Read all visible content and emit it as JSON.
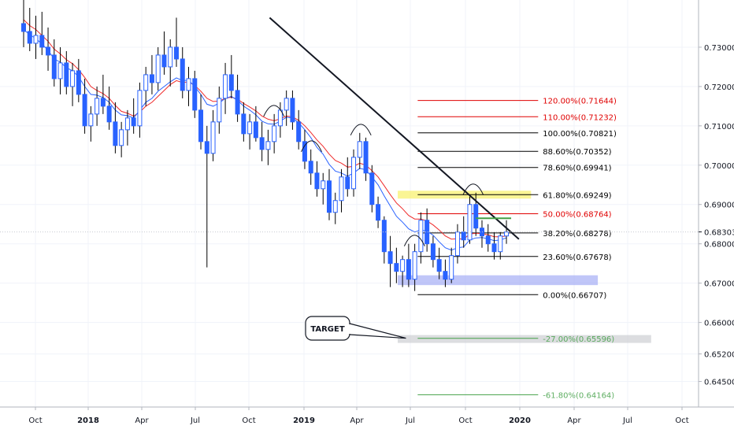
{
  "colors": {
    "background": "#ffffff",
    "grid": "#f0f3fa",
    "axis_line": "#b2b5be",
    "candle": "#2962ff",
    "ema_fast": "#ef2b2b",
    "ema_slow": "#2962ff",
    "trendline": "#131722",
    "fib_black": "#000000",
    "fib_red": "#e00000",
    "fib_green": "#43a047",
    "zone_yellow": "#f7f05a",
    "zone_blue": "#9ea7f5",
    "zone_gray": "#c9cbd0",
    "price_marker_bg": "#ffffff"
  },
  "chart_data": {
    "type": "candlestick",
    "title": "",
    "xlabel": "",
    "ylabel": "",
    "grid": true,
    "x_axis_labels": [
      "Oct",
      "2018",
      "Apr",
      "Jul",
      "Oct",
      "2019",
      "Apr",
      "Jul",
      "Oct",
      "2020",
      "Apr",
      "Jul",
      "Oct"
    ],
    "x_axis_bold": [
      "2018",
      "2019",
      "2020"
    ],
    "y_axis_ticks": [
      "0.73000",
      "0.72000",
      "0.71000",
      "0.70000",
      "0.69000",
      "0.68000",
      "0.67000",
      "0.66000",
      "0.65200",
      "0.64500"
    ],
    "y_axis_tick_values": [
      0.73,
      0.72,
      0.71,
      0.7,
      0.69,
      0.68,
      0.67,
      0.66,
      0.652,
      0.645
    ],
    "current_price": "0.68303",
    "x_range": [
      "2017-09",
      "2020-11"
    ],
    "y_range": [
      0.639,
      0.738
    ],
    "trendline": {
      "from": [
        "2018-11-05",
        0.7375
      ],
      "to": [
        "2019-12-30",
        0.6812
      ]
    },
    "fib_levels": [
      {
        "label": "120.00%(0.71644)",
        "value": 0.71644,
        "color": "red"
      },
      {
        "label": "110.00%(0.71232)",
        "value": 0.71232,
        "color": "red"
      },
      {
        "label": "100.00%(0.70821)",
        "value": 0.70821,
        "color": "black"
      },
      {
        "label": "88.60%(0.70352)",
        "value": 0.70352,
        "color": "black"
      },
      {
        "label": "78.60%(0.69941)",
        "value": 0.69941,
        "color": "black"
      },
      {
        "label": "61.80%(0.69249)",
        "value": 0.69249,
        "color": "black"
      },
      {
        "label": "50.00%(0.68764)",
        "value": 0.68764,
        "color": "red"
      },
      {
        "label": "38.20%(0.68278)",
        "value": 0.68278,
        "color": "black"
      },
      {
        "label": "23.60%(0.67678)",
        "value": 0.67678,
        "color": "black"
      },
      {
        "label": "0.00%(0.66707)",
        "value": 0.66707,
        "color": "black"
      },
      {
        "label": "-27.00%(0.65596)",
        "value": 0.65596,
        "color": "green"
      },
      {
        "label": "-61.80%(0.64164)",
        "value": 0.64164,
        "color": "green"
      }
    ],
    "fib_span": [
      "2019-07-08",
      "2019-12-16"
    ],
    "zones": [
      {
        "name": "yellow",
        "from": "2019-06-10",
        "to": "2020-01-20",
        "low": 0.6915,
        "high": 0.6935
      },
      {
        "name": "blue",
        "from": "2019-06-10",
        "to": "2020-05-11",
        "low": 0.6695,
        "high": 0.672
      },
      {
        "name": "gray",
        "from": "2019-06-10",
        "to": "2020-08-10",
        "low": 0.6553,
        "high": 0.6568
      }
    ],
    "callout": {
      "text": "TARGET",
      "points_to": [
        "2019-06-24",
        0.656
      ]
    },
    "swing_highs": [
      "2018-11-12",
      "2019-01-14",
      "2019-04-08",
      "2019-07-08",
      "2019-10-14"
    ],
    "candles": [
      {
        "o": 0.736,
        "h": 0.742,
        "l": 0.73,
        "c": 0.734
      },
      {
        "o": 0.734,
        "h": 0.74,
        "l": 0.729,
        "c": 0.731
      },
      {
        "o": 0.731,
        "h": 0.738,
        "l": 0.727,
        "c": 0.733
      },
      {
        "o": 0.733,
        "h": 0.739,
        "l": 0.728,
        "c": 0.73
      },
      {
        "o": 0.73,
        "h": 0.735,
        "l": 0.724,
        "c": 0.728
      },
      {
        "o": 0.728,
        "h": 0.732,
        "l": 0.72,
        "c": 0.722
      },
      {
        "o": 0.722,
        "h": 0.73,
        "l": 0.718,
        "c": 0.726
      },
      {
        "o": 0.726,
        "h": 0.729,
        "l": 0.718,
        "c": 0.72
      },
      {
        "o": 0.72,
        "h": 0.726,
        "l": 0.715,
        "c": 0.724
      },
      {
        "o": 0.724,
        "h": 0.727,
        "l": 0.716,
        "c": 0.718
      },
      {
        "o": 0.718,
        "h": 0.722,
        "l": 0.708,
        "c": 0.71
      },
      {
        "o": 0.71,
        "h": 0.715,
        "l": 0.706,
        "c": 0.713
      },
      {
        "o": 0.713,
        "h": 0.72,
        "l": 0.71,
        "c": 0.717
      },
      {
        "o": 0.717,
        "h": 0.723,
        "l": 0.713,
        "c": 0.715
      },
      {
        "o": 0.715,
        "h": 0.72,
        "l": 0.709,
        "c": 0.711
      },
      {
        "o": 0.711,
        "h": 0.716,
        "l": 0.703,
        "c": 0.705
      },
      {
        "o": 0.705,
        "h": 0.711,
        "l": 0.702,
        "c": 0.709
      },
      {
        "o": 0.709,
        "h": 0.714,
        "l": 0.705,
        "c": 0.712
      },
      {
        "o": 0.712,
        "h": 0.717,
        "l": 0.708,
        "c": 0.71
      },
      {
        "o": 0.71,
        "h": 0.721,
        "l": 0.707,
        "c": 0.719
      },
      {
        "o": 0.719,
        "h": 0.725,
        "l": 0.715,
        "c": 0.723
      },
      {
        "o": 0.723,
        "h": 0.728,
        "l": 0.718,
        "c": 0.721
      },
      {
        "o": 0.721,
        "h": 0.73,
        "l": 0.719,
        "c": 0.728
      },
      {
        "o": 0.728,
        "h": 0.734,
        "l": 0.723,
        "c": 0.725
      },
      {
        "o": 0.725,
        "h": 0.732,
        "l": 0.72,
        "c": 0.73
      },
      {
        "o": 0.73,
        "h": 0.7375,
        "l": 0.725,
        "c": 0.727
      },
      {
        "o": 0.727,
        "h": 0.73,
        "l": 0.717,
        "c": 0.719
      },
      {
        "o": 0.719,
        "h": 0.725,
        "l": 0.715,
        "c": 0.722
      },
      {
        "o": 0.722,
        "h": 0.724,
        "l": 0.712,
        "c": 0.714
      },
      {
        "o": 0.714,
        "h": 0.718,
        "l": 0.704,
        "c": 0.706
      },
      {
        "o": 0.706,
        "h": 0.71,
        "l": 0.674,
        "c": 0.703
      },
      {
        "o": 0.703,
        "h": 0.714,
        "l": 0.701,
        "c": 0.711
      },
      {
        "o": 0.711,
        "h": 0.72,
        "l": 0.708,
        "c": 0.717
      },
      {
        "o": 0.717,
        "h": 0.726,
        "l": 0.713,
        "c": 0.723
      },
      {
        "o": 0.723,
        "h": 0.728,
        "l": 0.717,
        "c": 0.719
      },
      {
        "o": 0.719,
        "h": 0.723,
        "l": 0.711,
        "c": 0.713
      },
      {
        "o": 0.713,
        "h": 0.716,
        "l": 0.706,
        "c": 0.708
      },
      {
        "o": 0.708,
        "h": 0.713,
        "l": 0.704,
        "c": 0.711
      },
      {
        "o": 0.711,
        "h": 0.715,
        "l": 0.706,
        "c": 0.707
      },
      {
        "o": 0.707,
        "h": 0.711,
        "l": 0.701,
        "c": 0.704
      },
      {
        "o": 0.704,
        "h": 0.709,
        "l": 0.7,
        "c": 0.706
      },
      {
        "o": 0.706,
        "h": 0.713,
        "l": 0.703,
        "c": 0.71
      },
      {
        "o": 0.71,
        "h": 0.716,
        "l": 0.707,
        "c": 0.714
      },
      {
        "o": 0.714,
        "h": 0.719,
        "l": 0.71,
        "c": 0.717
      },
      {
        "o": 0.717,
        "h": 0.719,
        "l": 0.709,
        "c": 0.711
      },
      {
        "o": 0.711,
        "h": 0.714,
        "l": 0.704,
        "c": 0.706
      },
      {
        "o": 0.706,
        "h": 0.709,
        "l": 0.699,
        "c": 0.701
      },
      {
        "o": 0.701,
        "h": 0.704,
        "l": 0.695,
        "c": 0.698
      },
      {
        "o": 0.698,
        "h": 0.701,
        "l": 0.692,
        "c": 0.694
      },
      {
        "o": 0.694,
        "h": 0.698,
        "l": 0.69,
        "c": 0.696
      },
      {
        "o": 0.696,
        "h": 0.699,
        "l": 0.686,
        "c": 0.688
      },
      {
        "o": 0.688,
        "h": 0.693,
        "l": 0.685,
        "c": 0.691
      },
      {
        "o": 0.691,
        "h": 0.699,
        "l": 0.688,
        "c": 0.697
      },
      {
        "o": 0.697,
        "h": 0.702,
        "l": 0.692,
        "c": 0.694
      },
      {
        "o": 0.694,
        "h": 0.704,
        "l": 0.692,
        "c": 0.702
      },
      {
        "o": 0.702,
        "h": 0.7082,
        "l": 0.699,
        "c": 0.706
      },
      {
        "o": 0.706,
        "h": 0.707,
        "l": 0.696,
        "c": 0.698
      },
      {
        "o": 0.698,
        "h": 0.7,
        "l": 0.688,
        "c": 0.69
      },
      {
        "o": 0.69,
        "h": 0.692,
        "l": 0.684,
        "c": 0.686
      },
      {
        "o": 0.686,
        "h": 0.687,
        "l": 0.675,
        "c": 0.678
      },
      {
        "o": 0.678,
        "h": 0.682,
        "l": 0.669,
        "c": 0.675
      },
      {
        "o": 0.675,
        "h": 0.679,
        "l": 0.67,
        "c": 0.673
      },
      {
        "o": 0.673,
        "h": 0.677,
        "l": 0.669,
        "c": 0.676
      },
      {
        "o": 0.676,
        "h": 0.68,
        "l": 0.669,
        "c": 0.671
      },
      {
        "o": 0.671,
        "h": 0.68,
        "l": 0.668,
        "c": 0.678
      },
      {
        "o": 0.678,
        "h": 0.688,
        "l": 0.675,
        "c": 0.686
      },
      {
        "o": 0.686,
        "h": 0.689,
        "l": 0.678,
        "c": 0.68
      },
      {
        "o": 0.68,
        "h": 0.682,
        "l": 0.674,
        "c": 0.676
      },
      {
        "o": 0.676,
        "h": 0.679,
        "l": 0.671,
        "c": 0.673
      },
      {
        "o": 0.673,
        "h": 0.676,
        "l": 0.669,
        "c": 0.671
      },
      {
        "o": 0.671,
        "h": 0.679,
        "l": 0.67,
        "c": 0.677
      },
      {
        "o": 0.677,
        "h": 0.685,
        "l": 0.675,
        "c": 0.683
      },
      {
        "o": 0.683,
        "h": 0.687,
        "l": 0.679,
        "c": 0.681
      },
      {
        "o": 0.681,
        "h": 0.692,
        "l": 0.68,
        "c": 0.69
      },
      {
        "o": 0.69,
        "h": 0.693,
        "l": 0.682,
        "c": 0.684
      },
      {
        "o": 0.684,
        "h": 0.686,
        "l": 0.679,
        "c": 0.682
      },
      {
        "o": 0.682,
        "h": 0.685,
        "l": 0.678,
        "c": 0.68
      },
      {
        "o": 0.68,
        "h": 0.683,
        "l": 0.676,
        "c": 0.678
      },
      {
        "o": 0.678,
        "h": 0.683,
        "l": 0.676,
        "c": 0.682
      },
      {
        "o": 0.682,
        "h": 0.686,
        "l": 0.68,
        "c": 0.683
      }
    ],
    "ema_red": [
      0.737,
      0.7355,
      0.7345,
      0.733,
      0.7315,
      0.7295,
      0.7283,
      0.7268,
      0.7258,
      0.7243,
      0.7223,
      0.72,
      0.719,
      0.7182,
      0.717,
      0.7152,
      0.7137,
      0.7132,
      0.7125,
      0.7135,
      0.715,
      0.716,
      0.7175,
      0.719,
      0.7205,
      0.7215,
      0.721,
      0.7212,
      0.7203,
      0.7188,
      0.717,
      0.7162,
      0.7163,
      0.717,
      0.7173,
      0.7168,
      0.7157,
      0.7148,
      0.7138,
      0.7125,
      0.7117,
      0.7113,
      0.7118,
      0.7125,
      0.7123,
      0.7114,
      0.71,
      0.7083,
      0.7064,
      0.7048,
      0.7028,
      0.7012,
      0.7005,
      0.6995,
      0.6997,
      0.7005,
      0.7,
      0.6986,
      0.697,
      0.6948,
      0.6925,
      0.6904,
      0.6889,
      0.6872,
      0.6863,
      0.6863,
      0.6858,
      0.6848,
      0.6835,
      0.682,
      0.6812,
      0.6813,
      0.6812,
      0.6825,
      0.6827,
      0.6826,
      0.6823,
      0.6818,
      0.6818,
      0.682
    ],
    "ema_blue": [
      0.7345,
      0.7332,
      0.7322,
      0.7308,
      0.7292,
      0.727,
      0.7262,
      0.7248,
      0.724,
      0.7225,
      0.72,
      0.718,
      0.7178,
      0.7172,
      0.716,
      0.714,
      0.7128,
      0.7126,
      0.712,
      0.714,
      0.716,
      0.717,
      0.7188,
      0.72,
      0.7212,
      0.7222,
      0.7215,
      0.7216,
      0.72,
      0.718,
      0.7155,
      0.715,
      0.7158,
      0.717,
      0.7175,
      0.7165,
      0.715,
      0.714,
      0.7128,
      0.7112,
      0.7105,
      0.7104,
      0.7112,
      0.7122,
      0.712,
      0.7108,
      0.709,
      0.707,
      0.7045,
      0.7028,
      0.7002,
      0.6985,
      0.698,
      0.6972,
      0.698,
      0.6992,
      0.6988,
      0.697,
      0.695,
      0.6922,
      0.6896,
      0.687,
      0.6855,
      0.6838,
      0.683,
      0.6835,
      0.6832,
      0.6822,
      0.6805,
      0.679,
      0.6784,
      0.679,
      0.6792,
      0.681,
      0.6815,
      0.6816,
      0.6813,
      0.6808,
      0.681,
      0.6815
    ]
  }
}
